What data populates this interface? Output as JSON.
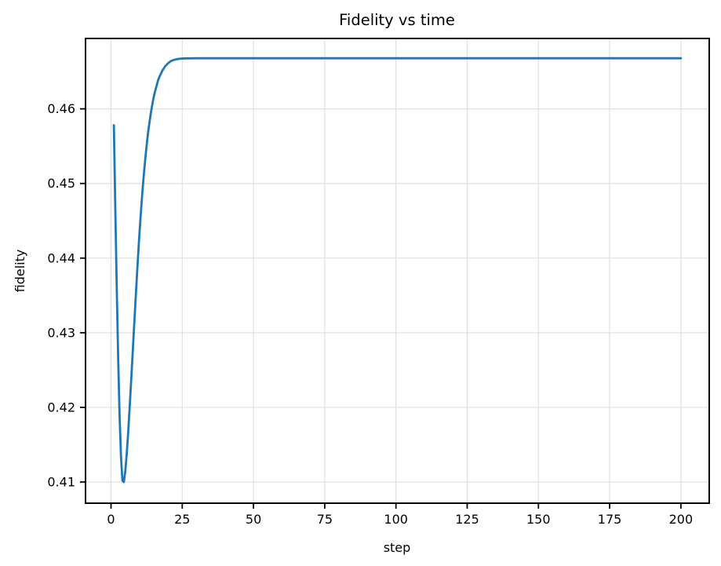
{
  "chart_data": {
    "type": "line",
    "title": "Fidelity vs time",
    "xlabel": "step",
    "ylabel": "fidelity",
    "xlim": [
      -8.95,
      209.95
    ],
    "ylim": [
      0.40716,
      0.46943
    ],
    "xticks": [
      0,
      25,
      50,
      75,
      100,
      125,
      150,
      175,
      200
    ],
    "yticks": [
      0.41,
      0.42,
      0.43,
      0.44,
      0.45,
      0.46
    ],
    "ytick_decimals": 2,
    "grid": true,
    "legend_position": "none",
    "colors": {
      "line": "#1f77b4",
      "grid": "#e0e0e0",
      "spine": "#000000",
      "background": "#ffffff"
    },
    "line_width": 2.8,
    "series": [
      {
        "name": "fidelity",
        "color": "#1f77b4",
        "x": [
          1,
          1.5,
          2,
          2.5,
          3,
          3.5,
          4,
          4.5,
          5,
          5.5,
          6,
          6.5,
          7,
          7.5,
          8,
          8.5,
          9,
          9.5,
          10,
          10.5,
          11,
          11.5,
          12,
          12.5,
          13,
          13.5,
          14,
          14.5,
          15,
          15.5,
          16,
          16.5,
          17,
          18,
          19,
          20,
          21,
          22,
          23,
          24,
          25,
          26,
          28,
          30,
          35,
          40,
          50,
          75,
          100,
          125,
          150,
          175,
          200
        ],
        "y": [
          0.4578,
          0.4468,
          0.4363,
          0.4268,
          0.419,
          0.4134,
          0.4102,
          0.41,
          0.4114,
          0.4137,
          0.4165,
          0.4197,
          0.4231,
          0.4266,
          0.4301,
          0.4336,
          0.437,
          0.4403,
          0.4434,
          0.4462,
          0.4488,
          0.4511,
          0.4532,
          0.4551,
          0.4568,
          0.4582,
          0.4595,
          0.4606,
          0.4616,
          0.4624,
          0.4631,
          0.4638,
          0.4643,
          0.4651,
          0.4657,
          0.4661,
          0.4664,
          0.46655,
          0.46665,
          0.46671,
          0.46674,
          0.46676,
          0.46677,
          0.46678,
          0.46678,
          0.46678,
          0.46678,
          0.46678,
          0.46678,
          0.46678,
          0.46678,
          0.46678,
          0.46678
        ]
      }
    ]
  }
}
